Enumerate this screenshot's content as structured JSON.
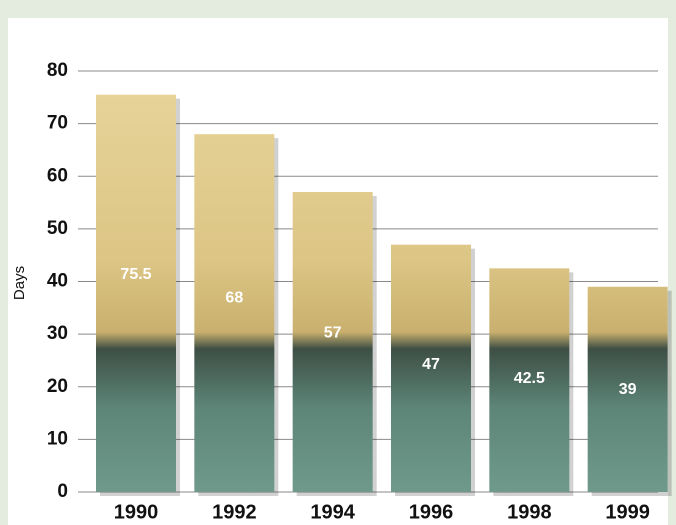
{
  "chart_data": {
    "type": "bar",
    "y_label": "Days",
    "categories": [
      "1990",
      "1992",
      "1994",
      "1996",
      "1998",
      "1999"
    ],
    "values": [
      75.5,
      68,
      57,
      47,
      42.5,
      39
    ],
    "ylim": [
      0,
      80
    ],
    "yticks": [
      0,
      10,
      20,
      30,
      40,
      50,
      60,
      70,
      80
    ],
    "grid": true
  }
}
